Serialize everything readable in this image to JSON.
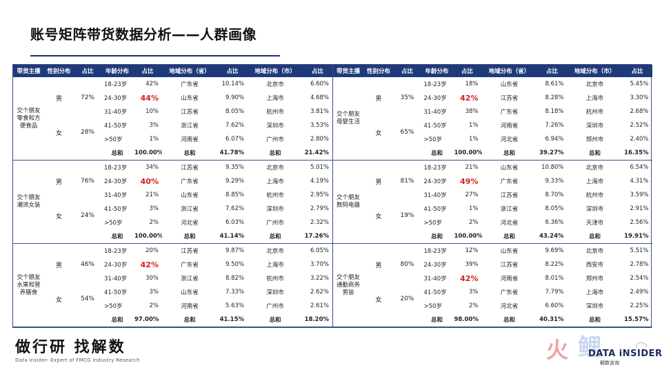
{
  "title": "账号矩阵带货数据分析——人群画像",
  "headers": [
    "带货主播",
    "性别分布",
    "占比",
    "年龄分布",
    "占比",
    "地域分布（省）",
    "占比",
    "地域分布（市）",
    "占比"
  ],
  "halves": [
    {
      "groups": [
        {
          "anchor": "交个朋友零食和方便食品",
          "genders": [
            {
              "gender": "男",
              "pct": "72%"
            },
            {
              "gender": "女",
              "pct": "28%"
            }
          ],
          "rows": [
            {
              "age": "18-23岁",
              "age_pct": "42%",
              "prov": "广东省",
              "prov_pct": "10.14%",
              "city": "北京市",
              "city_pct": "6.60%"
            },
            {
              "age": "24-30岁",
              "age_pct": "44%",
              "hl": true,
              "prov": "山东省",
              "prov_pct": "9.90%",
              "city": "上海市",
              "city_pct": "4.68%"
            },
            {
              "age": "31-40岁",
              "age_pct": "10%",
              "prov": "江苏省",
              "prov_pct": "8.05%",
              "city": "杭州市",
              "city_pct": "3.81%"
            },
            {
              "age": "41-50岁",
              "age_pct": "3%",
              "prov": "浙江省",
              "prov_pct": "7.62%",
              "city": "深圳市",
              "city_pct": "3.53%"
            },
            {
              "age": ">50岁",
              "age_pct": "1%",
              "prov": "河南省",
              "prov_pct": "6.07%",
              "city": "广州市",
              "city_pct": "2.80%"
            }
          ],
          "total": {
            "age": "总和",
            "age_pct": "100.00%",
            "prov": "总和",
            "prov_pct": "41.78%",
            "city": "总和",
            "city_pct": "21.42%"
          }
        },
        {
          "anchor": "交个朋友潮流女装",
          "genders": [
            {
              "gender": "男",
              "pct": "76%"
            },
            {
              "gender": "女",
              "pct": "24%"
            }
          ],
          "rows": [
            {
              "age": "18-23岁",
              "age_pct": "34%",
              "prov": "江苏省",
              "prov_pct": "9.35%",
              "city": "北京市",
              "city_pct": "5.01%"
            },
            {
              "age": "24-30岁",
              "age_pct": "40%",
              "hl": true,
              "prov": "广东省",
              "prov_pct": "9.29%",
              "city": "上海市",
              "city_pct": "4.19%"
            },
            {
              "age": "31-40岁",
              "age_pct": "21%",
              "prov": "山东省",
              "prov_pct": "8.85%",
              "city": "杭州市",
              "city_pct": "2.95%"
            },
            {
              "age": "41-50岁",
              "age_pct": "3%",
              "prov": "浙江省",
              "prov_pct": "7.62%",
              "city": "深圳市",
              "city_pct": "2.79%"
            },
            {
              "age": ">50岁",
              "age_pct": "2%",
              "prov": "河北省",
              "prov_pct": "6.03%",
              "city": "广州市",
              "city_pct": "2.32%"
            }
          ],
          "total": {
            "age": "总和",
            "age_pct": "100.00%",
            "prov": "总和",
            "prov_pct": "41.14%",
            "city": "总和",
            "city_pct": "17.26%"
          }
        },
        {
          "anchor": "交个朋友水果和营养膳食",
          "genders": [
            {
              "gender": "男",
              "pct": "46%"
            },
            {
              "gender": "女",
              "pct": "54%"
            }
          ],
          "rows": [
            {
              "age": "18-23岁",
              "age_pct": "20%",
              "prov": "江苏省",
              "prov_pct": "9.87%",
              "city": "北京市",
              "city_pct": "6.05%"
            },
            {
              "age": "24-30岁",
              "age_pct": "42%",
              "hl": true,
              "prov": "广东省",
              "prov_pct": "9.50%",
              "city": "上海市",
              "city_pct": "3.70%"
            },
            {
              "age": "31-40岁",
              "age_pct": "30%",
              "prov": "浙江省",
              "prov_pct": "8.82%",
              "city": "杭州市",
              "city_pct": "3.22%"
            },
            {
              "age": "41-50岁",
              "age_pct": "3%",
              "prov": "山东省",
              "prov_pct": "7.33%",
              "city": "深圳市",
              "city_pct": "2.62%"
            },
            {
              "age": ">50岁",
              "age_pct": "2%",
              "prov": "河南省",
              "prov_pct": "5.63%",
              "city": "广州市",
              "city_pct": "2.61%"
            }
          ],
          "total": {
            "age": "总和",
            "age_pct": "97.00%",
            "prov": "总和",
            "prov_pct": "41.15%",
            "city": "总和",
            "city_pct": "18.20%"
          }
        }
      ]
    },
    {
      "groups": [
        {
          "anchor": "交个朋友母婴生活",
          "genders": [
            {
              "gender": "男",
              "pct": "35%"
            },
            {
              "gender": "女",
              "pct": "65%"
            }
          ],
          "rows": [
            {
              "age": "18-23岁",
              "age_pct": "18%",
              "prov": "山东省",
              "prov_pct": "8.61%",
              "city": "北京市",
              "city_pct": "5.45%"
            },
            {
              "age": "24-30岁",
              "age_pct": "42%",
              "hl": true,
              "prov": "江苏省",
              "prov_pct": "8.28%",
              "city": "上海市",
              "city_pct": "3.30%"
            },
            {
              "age": "31-40岁",
              "age_pct": "38%",
              "prov": "广东省",
              "prov_pct": "8.18%",
              "city": "杭州市",
              "city_pct": "2.68%"
            },
            {
              "age": "41-50岁",
              "age_pct": "1%",
              "prov": "河南省",
              "prov_pct": "7.26%",
              "city": "深圳市",
              "city_pct": "2.52%"
            },
            {
              "age": ">50岁",
              "age_pct": "1%",
              "prov": "河北省",
              "prov_pct": "6.94%",
              "city": "郑州市",
              "city_pct": "2.40%"
            }
          ],
          "total": {
            "age": "总和",
            "age_pct": "100.00%",
            "prov": "总和",
            "prov_pct": "39.27%",
            "city": "总和",
            "city_pct": "16.35%"
          }
        },
        {
          "anchor": "交个朋友数码电器",
          "genders": [
            {
              "gender": "男",
              "pct": "81%"
            },
            {
              "gender": "女",
              "pct": "19%"
            }
          ],
          "rows": [
            {
              "age": "18-23岁",
              "age_pct": "21%",
              "prov": "山东省",
              "prov_pct": "10.80%",
              "city": "北京市",
              "city_pct": "6.54%"
            },
            {
              "age": "24-30岁",
              "age_pct": "49%",
              "hl": true,
              "prov": "广东省",
              "prov_pct": "9.33%",
              "city": "上海市",
              "city_pct": "4.31%"
            },
            {
              "age": "31-40岁",
              "age_pct": "27%",
              "prov": "江苏省",
              "prov_pct": "8.70%",
              "city": "杭州市",
              "city_pct": "3.59%"
            },
            {
              "age": "41-50岁",
              "age_pct": "1%",
              "prov": "浙江省",
              "prov_pct": "8.05%",
              "city": "深圳市",
              "city_pct": "2.91%"
            },
            {
              "age": ">50岁",
              "age_pct": "2%",
              "prov": "河北省",
              "prov_pct": "6.36%",
              "city": "天津市",
              "city_pct": "2.56%"
            }
          ],
          "total": {
            "age": "总和",
            "age_pct": "100.00%",
            "prov": "总和",
            "prov_pct": "43.24%",
            "city": "总和",
            "city_pct": "19.91%"
          }
        },
        {
          "anchor": "交个朋友通勤商务男装",
          "genders": [
            {
              "gender": "男",
              "pct": "80%"
            },
            {
              "gender": "女",
              "pct": "20%"
            }
          ],
          "rows": [
            {
              "age": "18-23岁",
              "age_pct": "12%",
              "prov": "山东省",
              "prov_pct": "9.69%",
              "city": "北京市",
              "city_pct": "5.51%"
            },
            {
              "age": "24-30岁",
              "age_pct": "39%",
              "prov": "江苏省",
              "prov_pct": "8.22%",
              "city": "西安市",
              "city_pct": "2.78%"
            },
            {
              "age": "31-40岁",
              "age_pct": "42%",
              "hl": true,
              "prov": "河南省",
              "prov_pct": "8.01%",
              "city": "郑州市",
              "city_pct": "2.54%"
            },
            {
              "age": "41-50岁",
              "age_pct": "3%",
              "prov": "广东省",
              "prov_pct": "7.79%",
              "city": "上海市",
              "city_pct": "2.49%"
            },
            {
              "age": ">50岁",
              "age_pct": "2%",
              "prov": "河北省",
              "prov_pct": "6.60%",
              "city": "深圳市",
              "city_pct": "2.25%"
            }
          ],
          "total": {
            "age": "总和",
            "age_pct": "98.00%",
            "prov": "总和",
            "prov_pct": "40.31%",
            "city": "总和",
            "city_pct": "15.57%"
          }
        }
      ]
    }
  ],
  "footer": {
    "logo": "做行研 找解数",
    "sub": "Data Insider- Expert of FMCG Industry Research",
    "brand_char1": "火",
    "brand_char2": "鲤",
    "brand_name": "DATA iNSIDER",
    "brand_sub": "解数咨询"
  }
}
